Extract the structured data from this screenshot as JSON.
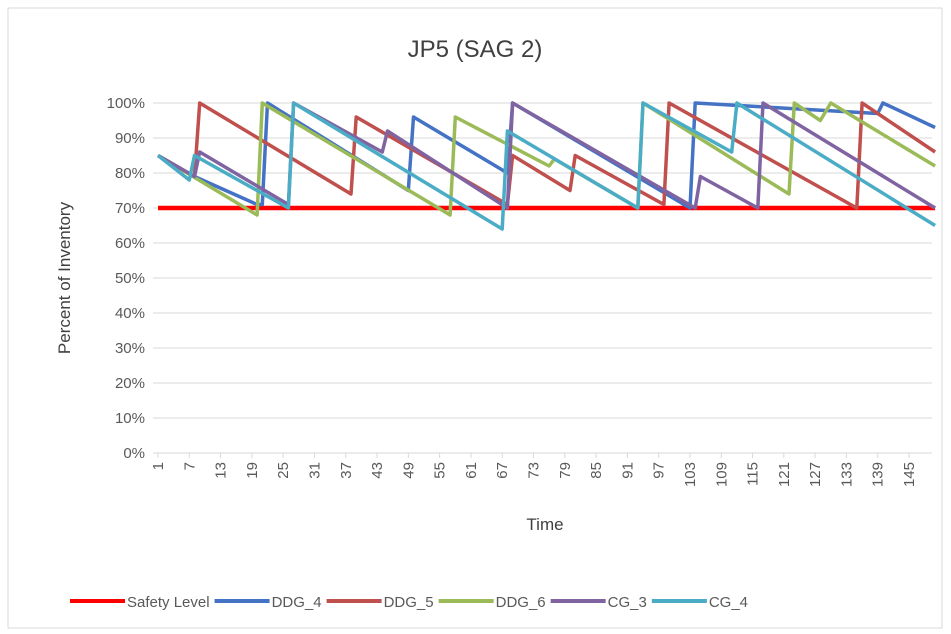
{
  "chart_data": {
    "type": "line",
    "title": "JP5 (SAG 2)",
    "x_label": "Time",
    "y_label": "Percent of Inventory",
    "xlim": [
      1,
      150
    ],
    "xticks": [
      1,
      7,
      13,
      19,
      25,
      31,
      37,
      43,
      49,
      55,
      61,
      67,
      73,
      79,
      85,
      91,
      97,
      103,
      109,
      115,
      121,
      127,
      133,
      139,
      145
    ],
    "ylim": [
      0,
      100
    ],
    "yticks": [
      {
        "value": 0,
        "label": "0%"
      },
      {
        "value": 10,
        "label": "10%"
      },
      {
        "value": 20,
        "label": "20%"
      },
      {
        "value": 30,
        "label": "30%"
      },
      {
        "value": 40,
        "label": "40%"
      },
      {
        "value": 50,
        "label": "50%"
      },
      {
        "value": 60,
        "label": "60%"
      },
      {
        "value": 70,
        "label": "70%"
      },
      {
        "value": 80,
        "label": "80%"
      },
      {
        "value": 90,
        "label": "90%"
      },
      {
        "value": 100,
        "label": "100%"
      }
    ],
    "grid": true,
    "legend": "bottom",
    "series": [
      {
        "name": "Safety Level",
        "color": "#ff0000",
        "x": [
          1,
          150
        ],
        "values": [
          70,
          70
        ]
      },
      {
        "name": "DDG_4",
        "color": "#4472c4",
        "x": [
          1,
          8,
          14,
          20,
          21,
          22,
          49,
          50,
          68,
          69,
          103,
          104,
          139,
          140,
          150
        ],
        "values": [
          85,
          79,
          75,
          71,
          71,
          100,
          75,
          96,
          80,
          100,
          70,
          100,
          97,
          100,
          93
        ]
      },
      {
        "name": "DDG_5",
        "color": "#c0504d",
        "x": [
          1,
          8,
          9,
          38,
          39,
          68,
          69,
          80,
          81,
          98,
          99,
          135,
          136,
          150
        ],
        "values": [
          85,
          79,
          100,
          74,
          96,
          71,
          85,
          75,
          85,
          71,
          100,
          70,
          100,
          86
        ]
      },
      {
        "name": "DDG_6",
        "color": "#9bbb59",
        "x": [
          1,
          20,
          21,
          57,
          58,
          76,
          77,
          93,
          94,
          122,
          123,
          128,
          130,
          150
        ],
        "values": [
          85,
          68,
          100,
          68,
          96,
          82,
          84,
          70,
          100,
          74,
          100,
          95,
          100,
          82
        ]
      },
      {
        "name": "CG_3",
        "color": "#8064a2",
        "x": [
          1,
          8,
          9,
          26,
          27,
          44,
          45,
          68,
          69,
          104,
          105,
          116,
          117,
          150
        ],
        "values": [
          85,
          79,
          86,
          71,
          100,
          86,
          92,
          70,
          100,
          70,
          79,
          70,
          100,
          70
        ]
      },
      {
        "name": "CG_4",
        "color": "#4bacc6",
        "x": [
          1,
          7,
          8,
          26,
          27,
          67,
          68,
          93,
          94,
          111,
          112,
          150
        ],
        "values": [
          85,
          78,
          85,
          70,
          100,
          64,
          92,
          70,
          100,
          86,
          100,
          65
        ]
      }
    ]
  }
}
